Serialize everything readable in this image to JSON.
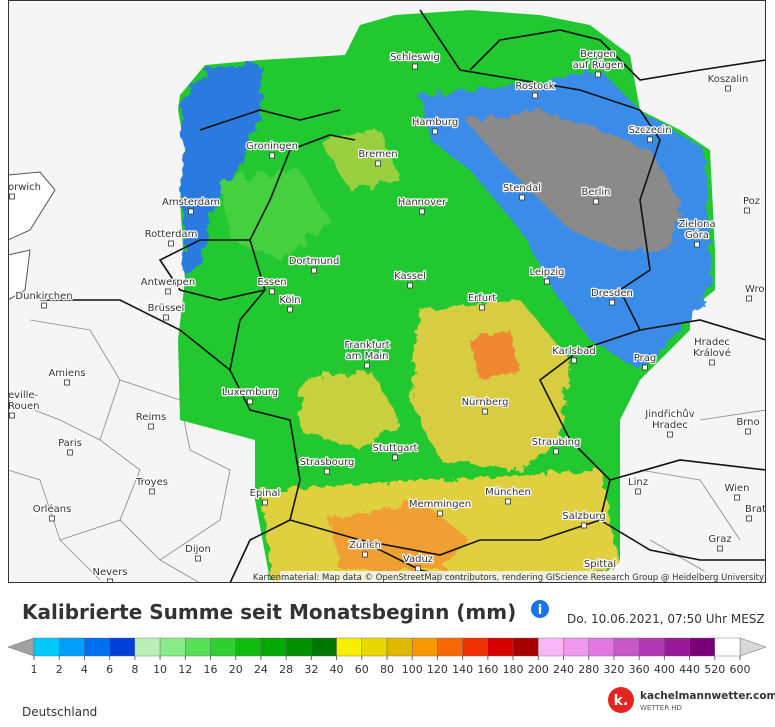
{
  "map": {
    "cities": [
      [
        "Schleswig"
      ],
      [
        "Bergen",
        "auf Rügen"
      ],
      [
        "Koszalin"
      ],
      [
        "Rostock"
      ],
      [
        "Hamburg"
      ],
      [
        "Szczecin"
      ],
      [
        "Groningen"
      ],
      [
        "Bremen"
      ],
      [
        "Stendal"
      ],
      [
        "Berlin"
      ],
      [
        "Amsterdam"
      ],
      [
        "Hannover"
      ],
      [
        "Poz"
      ],
      [
        "orwich"
      ],
      [
        "Zielona",
        "Góra"
      ],
      [
        "Rotterdam"
      ],
      [
        "Dortmund"
      ],
      [
        "Leipzig"
      ],
      [
        "Kassel"
      ],
      [
        "Antwerpen"
      ],
      [
        "Essen"
      ],
      [
        "Dunkirchen"
      ],
      [
        "Wroc"
      ],
      [
        "Köln"
      ],
      [
        "Erfurt"
      ],
      [
        "Dresden"
      ],
      [
        "Brüssel"
      ],
      [
        "Frankfurt",
        "am Main"
      ],
      [
        "Karlsbad"
      ],
      [
        "Hradec",
        "Králové"
      ],
      [
        "Prag"
      ],
      [
        "Amiens"
      ],
      [
        "Luxemburg"
      ],
      [
        "Nürnberg"
      ],
      [
        "eville-",
        "Rouen"
      ],
      [
        "Reims"
      ],
      [
        "Jindřichův",
        "Hradec"
      ],
      [
        "Brno"
      ],
      [
        "Paris"
      ],
      [
        "Stuttgart"
      ],
      [
        "Straubing"
      ],
      [
        "Strasbourg"
      ],
      [
        "Troyes"
      ],
      [
        "Linz"
      ],
      [
        "Epinal"
      ],
      [
        "Wien"
      ],
      [
        "München"
      ],
      [
        "Memmingen"
      ],
      [
        "Orléans"
      ],
      [
        "Brat"
      ],
      [
        "Salzburg"
      ],
      [
        "Dijon"
      ],
      [
        "Zürich"
      ],
      [
        "Vaduz"
      ],
      [
        "Graz"
      ],
      [
        "Nevers"
      ],
      [
        "Spittal"
      ]
    ],
    "attribution": "Kartenmaterial: Map data © OpenStreetMap contributors, rendering GIScience Research Group @ Heidelberg University"
  },
  "header": {
    "title": "Kalibrierte Summe seit Monatsbeginn (mm)",
    "info_icon": "i",
    "timestamp": "Do. 10.06.2021, 07:50 Uhr MESZ"
  },
  "legend": {
    "ticks": [
      1,
      2,
      4,
      6,
      8,
      10,
      12,
      16,
      20,
      24,
      28,
      32,
      40,
      60,
      80,
      100,
      120,
      140,
      160,
      180,
      200,
      240,
      280,
      320,
      360,
      400,
      440,
      520,
      600
    ],
    "colors": [
      "#00c8f8",
      "#00a0f8",
      "#0070f0",
      "#0040d8",
      "#b8f0b8",
      "#88ec88",
      "#58e058",
      "#30d030",
      "#10bc10",
      "#00a800",
      "#009000",
      "#007800",
      "#f8f000",
      "#e8d800",
      "#e0b800",
      "#f89800",
      "#f86800",
      "#f03000",
      "#d80000",
      "#a80000",
      "#f8b8f8",
      "#f098f0",
      "#e078e0",
      "#c858c8",
      "#b038b0",
      "#981898",
      "#780078",
      "#ffffff"
    ],
    "region": "Deutschland"
  },
  "brand": {
    "logo": "k.",
    "name": "kachelmannwetter.com",
    "tagline": "WETTER HD"
  }
}
